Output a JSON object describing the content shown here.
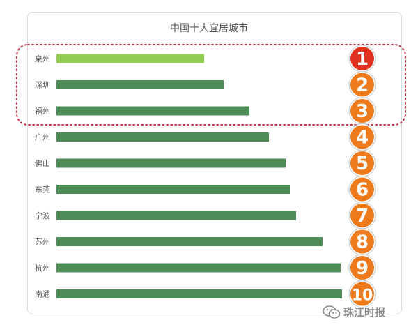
{
  "chart_data": {
    "type": "bar",
    "orientation": "horizontal",
    "title": "中国十大宜居城市",
    "categories": [
      "泉州",
      "深圳",
      "福州",
      "广州",
      "佛山",
      "东莞",
      "宁波",
      "苏州",
      "杭州",
      "南通"
    ],
    "values": [
      212,
      240,
      277,
      305,
      329,
      335,
      344,
      382,
      408,
      410
    ],
    "ranks": [
      "1",
      "2",
      "3",
      "4",
      "5",
      "6",
      "7",
      "8",
      "9",
      "10"
    ],
    "highlight_top": 3,
    "colors": {
      "first_bar": "#92cc52",
      "bar": "#4d8c57",
      "rank_first": "#e0301f",
      "rank_other": "#ee7a1b",
      "highlight_border": "#c2384a"
    }
  },
  "watermark": {
    "icon": "wechat-icon",
    "text": "珠江时报"
  }
}
